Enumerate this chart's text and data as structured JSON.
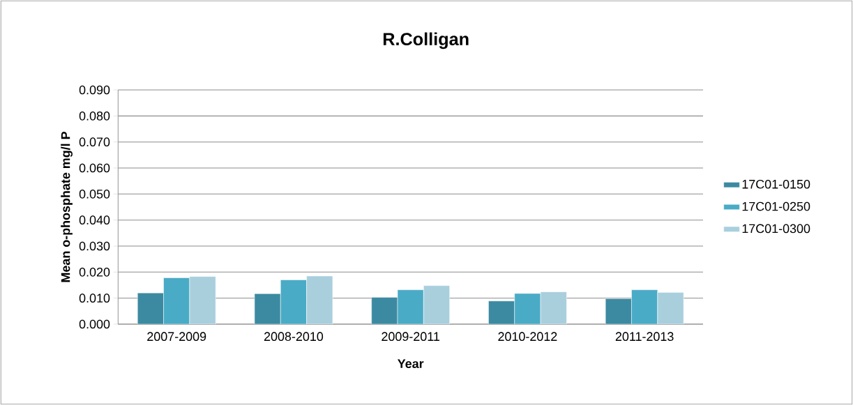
{
  "chart_data": {
    "type": "bar",
    "title": "R.Colligan",
    "xlabel": "Year",
    "ylabel": "Mean o-phosphate mg/l P",
    "categories": [
      "2007-2009",
      "2008-2010",
      "2009-2011",
      "2010-2012",
      "2011-2013"
    ],
    "series": [
      {
        "name": "17C01-0150",
        "color": "#3c8aa1",
        "values": [
          0.012,
          0.0117,
          0.0103,
          0.0089,
          0.0098
        ]
      },
      {
        "name": "17C01-0250",
        "color": "#4aabc6",
        "values": [
          0.0178,
          0.017,
          0.0132,
          0.0118,
          0.0132
        ]
      },
      {
        "name": "17C01-0300",
        "color": "#a9cfdd",
        "values": [
          0.0183,
          0.0185,
          0.0148,
          0.0124,
          0.0122
        ]
      }
    ],
    "ylim": [
      0,
      0.09
    ],
    "yticks": [
      {
        "value": 0,
        "label": "0.000"
      },
      {
        "value": 0.01,
        "label": "0.010"
      },
      {
        "value": 0.02,
        "label": "0.020"
      },
      {
        "value": 0.03,
        "label": "0.030"
      },
      {
        "value": 0.04,
        "label": "0.040"
      },
      {
        "value": 0.05,
        "label": "0.050"
      },
      {
        "value": 0.06,
        "label": "0.060"
      },
      {
        "value": 0.07,
        "label": "0.070"
      },
      {
        "value": 0.08,
        "label": "0.080"
      },
      {
        "value": 0.09,
        "label": "0.090"
      }
    ],
    "grid": "y",
    "legend": "right"
  }
}
